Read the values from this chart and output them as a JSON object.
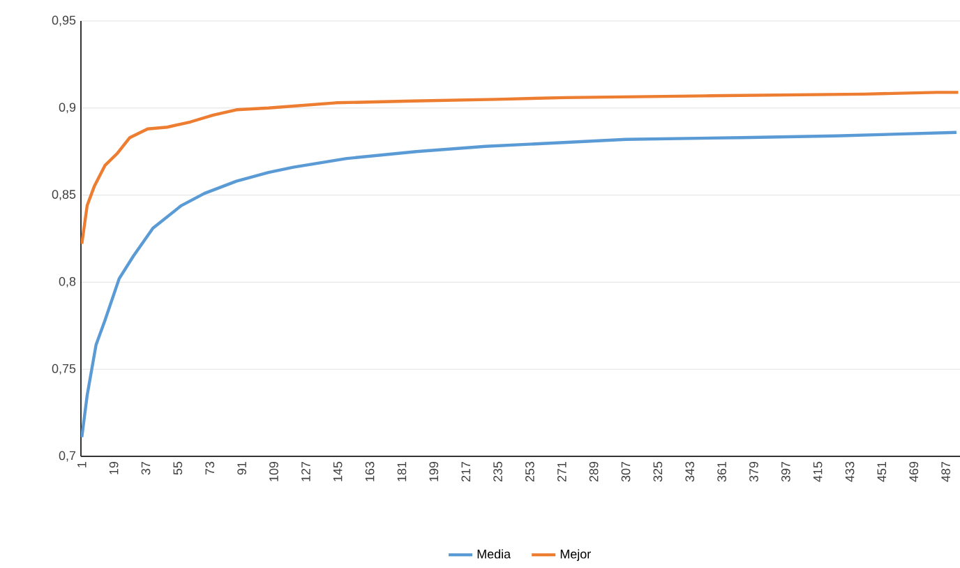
{
  "chart_data": {
    "type": "line",
    "xlim": [
      0.5,
      495
    ],
    "ylim": [
      0.7,
      0.95
    ],
    "xticks": [
      1,
      19,
      37,
      55,
      73,
      91,
      109,
      127,
      145,
      163,
      181,
      199,
      217,
      235,
      253,
      271,
      289,
      307,
      325,
      343,
      361,
      379,
      397,
      415,
      433,
      451,
      469,
      487
    ],
    "yticks": [
      {
        "value": 0.7,
        "label": "0,7"
      },
      {
        "value": 0.75,
        "label": "0,75"
      },
      {
        "value": 0.8,
        "label": "0,8"
      },
      {
        "value": 0.85,
        "label": "0,85"
      },
      {
        "value": 0.9,
        "label": "0,9"
      },
      {
        "value": 0.95,
        "label": "0,95"
      }
    ],
    "grid": "y",
    "legend": "bottom",
    "marker": "none",
    "line_style": "solid",
    "series": [
      {
        "name": "Media",
        "color": "#5b9bd5",
        "x": [
          1,
          4,
          9,
          14,
          22,
          30,
          41,
          57,
          70,
          88,
          106,
          120,
          150,
          189,
          228,
          268,
          307,
          372,
          425,
          493
        ],
        "values": [
          0.711,
          0.735,
          0.764,
          0.778,
          0.802,
          0.815,
          0.831,
          0.844,
          0.851,
          0.858,
          0.863,
          0.866,
          0.871,
          0.875,
          0.878,
          0.88,
          0.882,
          0.883,
          0.884,
          0.886
        ]
      },
      {
        "name": "Mejor",
        "color": "#ed7d31",
        "x": [
          1,
          4,
          8,
          14,
          21,
          28,
          38,
          49,
          62,
          75,
          88,
          106,
          144,
          187,
          234,
          273,
          352,
          441,
          482,
          494
        ],
        "values": [
          0.822,
          0.844,
          0.855,
          0.867,
          0.874,
          0.883,
          0.888,
          0.889,
          0.892,
          0.896,
          0.899,
          0.9,
          0.903,
          0.904,
          0.905,
          0.906,
          0.907,
          0.908,
          0.909,
          0.909
        ]
      }
    ]
  }
}
